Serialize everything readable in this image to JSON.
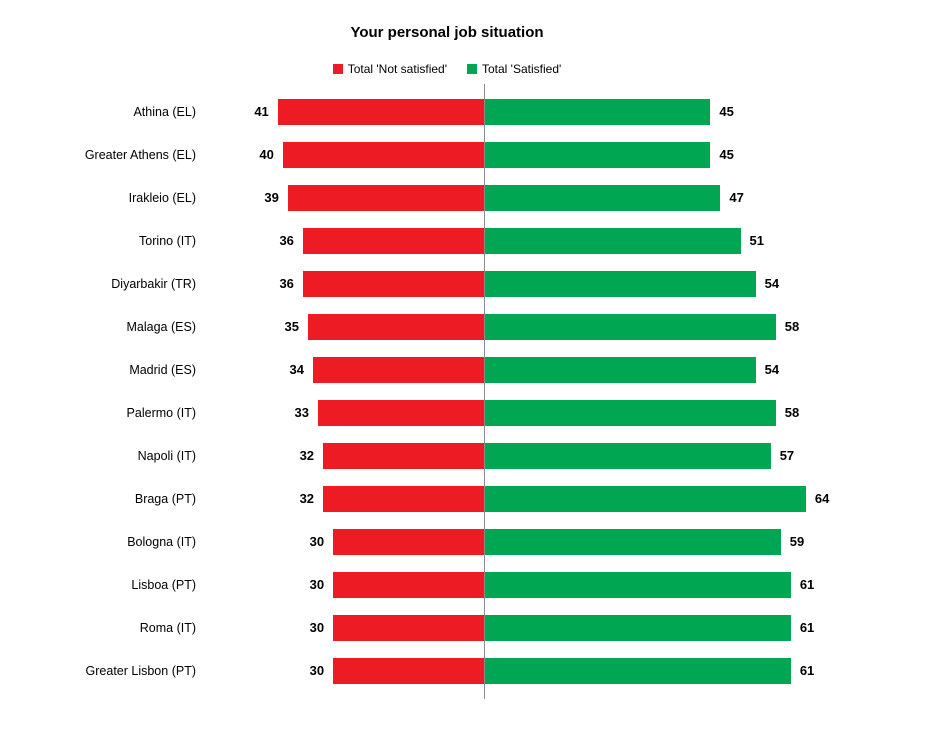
{
  "chart_data": {
    "type": "bar",
    "variant": "diverging-horizontal",
    "title": "Your personal job situation",
    "legend_position": "top",
    "value_labels": "outside-bar-ends",
    "axis": {
      "center_line": true,
      "grid": false
    },
    "value_range": [
      0,
      64
    ],
    "categories": [
      "Athina (EL)",
      "Greater Athens (EL)",
      "Irakleio (EL)",
      "Torino (IT)",
      "Diyarbakir (TR)",
      "Malaga (ES)",
      "Madrid (ES)",
      "Palermo (IT)",
      "Napoli (IT)",
      "Braga (PT)",
      "Bologna (IT)",
      "Lisboa (PT)",
      "Roma (IT)",
      "Greater Lisbon (PT)"
    ],
    "series": [
      {
        "name": "Total 'Not satisfied'",
        "color": "#ed1c24",
        "direction": "left",
        "values": [
          41,
          40,
          39,
          36,
          36,
          35,
          34,
          33,
          32,
          32,
          30,
          30,
          30,
          30
        ]
      },
      {
        "name": "Total 'Satisfied'",
        "color": "#00a651",
        "direction": "right",
        "values": [
          45,
          45,
          47,
          51,
          54,
          58,
          54,
          58,
          57,
          64,
          59,
          61,
          61,
          61
        ]
      }
    ]
  }
}
